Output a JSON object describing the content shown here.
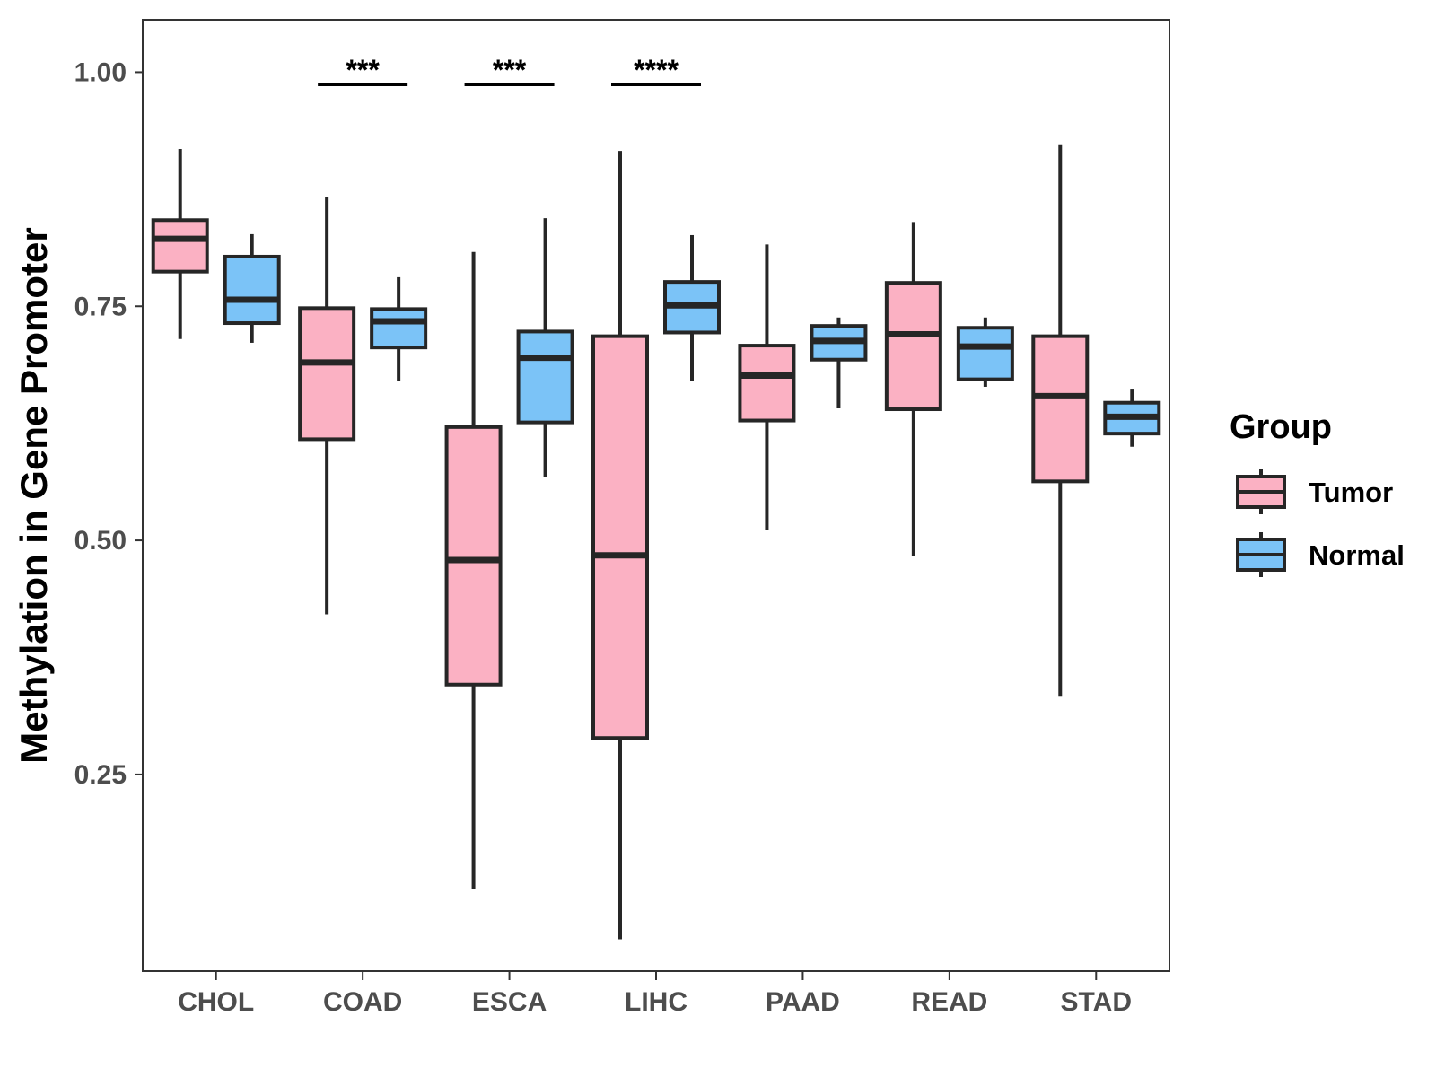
{
  "chart_data": {
    "type": "boxplot",
    "title": "",
    "xlabel": "",
    "ylabel": "Methylation in Gene Promoter",
    "ylim": [
      0.04,
      1.056
    ],
    "yticks": [
      0.25,
      0.5,
      0.75,
      1.0
    ],
    "ytick_labels": [
      "0.25",
      "0.50",
      "0.75",
      "1.00"
    ],
    "categories": [
      "CHOL",
      "COAD",
      "ESCA",
      "LIHC",
      "PAAD",
      "READ",
      "STAD"
    ],
    "legend": {
      "title": "Group",
      "position": "right",
      "entries": [
        {
          "name": "Tumor",
          "color": "#fbb1c3"
        },
        {
          "name": "Normal",
          "color": "#7bc3f7"
        }
      ]
    },
    "series": [
      {
        "name": "Tumor",
        "color": "#fbb1c3",
        "boxes": [
          {
            "category": "CHOL",
            "whisker_low": 0.715,
            "q1": 0.787,
            "median": 0.822,
            "q3": 0.842,
            "whisker_high": 0.918
          },
          {
            "category": "COAD",
            "whisker_low": 0.421,
            "q1": 0.608,
            "median": 0.69,
            "q3": 0.748,
            "whisker_high": 0.867
          },
          {
            "category": "ESCA",
            "whisker_low": 0.128,
            "q1": 0.346,
            "median": 0.479,
            "q3": 0.621,
            "whisker_high": 0.808
          },
          {
            "category": "LIHC",
            "whisker_low": 0.074,
            "q1": 0.289,
            "median": 0.484,
            "q3": 0.718,
            "whisker_high": 0.916
          },
          {
            "category": "PAAD",
            "whisker_low": 0.511,
            "q1": 0.628,
            "median": 0.676,
            "q3": 0.708,
            "whisker_high": 0.816
          },
          {
            "category": "READ",
            "whisker_low": 0.483,
            "q1": 0.64,
            "median": 0.72,
            "q3": 0.775,
            "whisker_high": 0.84
          },
          {
            "category": "STAD",
            "whisker_low": 0.333,
            "q1": 0.563,
            "median": 0.654,
            "q3": 0.718,
            "whisker_high": 0.922
          }
        ]
      },
      {
        "name": "Normal",
        "color": "#7bc3f7",
        "boxes": [
          {
            "category": "CHOL",
            "whisker_low": 0.711,
            "q1": 0.732,
            "median": 0.757,
            "q3": 0.803,
            "whisker_high": 0.827
          },
          {
            "category": "COAD",
            "whisker_low": 0.67,
            "q1": 0.706,
            "median": 0.734,
            "q3": 0.747,
            "whisker_high": 0.781
          },
          {
            "category": "ESCA",
            "whisker_low": 0.568,
            "q1": 0.626,
            "median": 0.695,
            "q3": 0.723,
            "whisker_high": 0.844
          },
          {
            "category": "LIHC",
            "whisker_low": 0.67,
            "q1": 0.722,
            "median": 0.751,
            "q3": 0.776,
            "whisker_high": 0.826
          },
          {
            "category": "PAAD",
            "whisker_low": 0.641,
            "q1": 0.693,
            "median": 0.713,
            "q3": 0.729,
            "whisker_high": 0.738
          },
          {
            "category": "READ",
            "whisker_low": 0.664,
            "q1": 0.672,
            "median": 0.707,
            "q3": 0.727,
            "whisker_high": 0.738
          },
          {
            "category": "STAD",
            "whisker_low": 0.6,
            "q1": 0.614,
            "median": 0.632,
            "q3": 0.647,
            "whisker_high": 0.662
          }
        ]
      }
    ],
    "annotations": [
      {
        "category": "COAD",
        "label": "***",
        "y": 0.987
      },
      {
        "category": "ESCA",
        "label": "***",
        "y": 0.987
      },
      {
        "category": "LIHC",
        "label": "****",
        "y": 0.987
      }
    ],
    "grid": false
  }
}
